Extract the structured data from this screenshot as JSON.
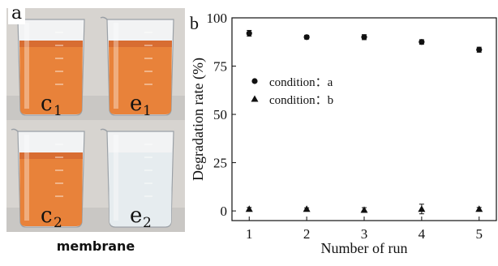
{
  "panel_a": {
    "label": "a",
    "caption": "membrane",
    "beakers": [
      {
        "id": "c1",
        "letter": "c",
        "sub": "1",
        "liquid": "orange"
      },
      {
        "id": "e1",
        "letter": "e",
        "sub": "1",
        "liquid": "orange"
      },
      {
        "id": "c2",
        "letter": "c",
        "sub": "2",
        "liquid": "orange"
      },
      {
        "id": "e2",
        "letter": "e",
        "sub": "2",
        "liquid": "clear"
      }
    ]
  },
  "colors": {
    "orange_liquid": "#e8823a",
    "orange_dark": "#c8582a",
    "clear_liquid": "#e6ecef",
    "bench": "#c9c7c4"
  },
  "chart_data": {
    "type": "scatter",
    "panel_label": "b",
    "xlabel": "Number of run",
    "ylabel": "Degradation rate (%)",
    "xlim": [
      0.7,
      5.3
    ],
    "ylim": [
      -5,
      100
    ],
    "xticks": [
      "1",
      "2",
      "3",
      "4",
      "5"
    ],
    "yticks": [
      "0",
      "25",
      "50",
      "75",
      "100"
    ],
    "legend_position": "upper-left",
    "series": [
      {
        "name": "condition：a",
        "marker": "circle",
        "x": [
          1,
          2,
          3,
          4,
          5
        ],
        "y": [
          92,
          90,
          90,
          87.5,
          83.5
        ],
        "err": [
          1.5,
          1,
          1.3,
          1.2,
          1.3
        ]
      },
      {
        "name": "condition：b",
        "marker": "triangle",
        "x": [
          1,
          2,
          3,
          4,
          5
        ],
        "y": [
          1,
          1,
          0.5,
          1,
          1
        ],
        "err": [
          0.8,
          0.6,
          1.2,
          2.5,
          0.8
        ]
      }
    ]
  }
}
